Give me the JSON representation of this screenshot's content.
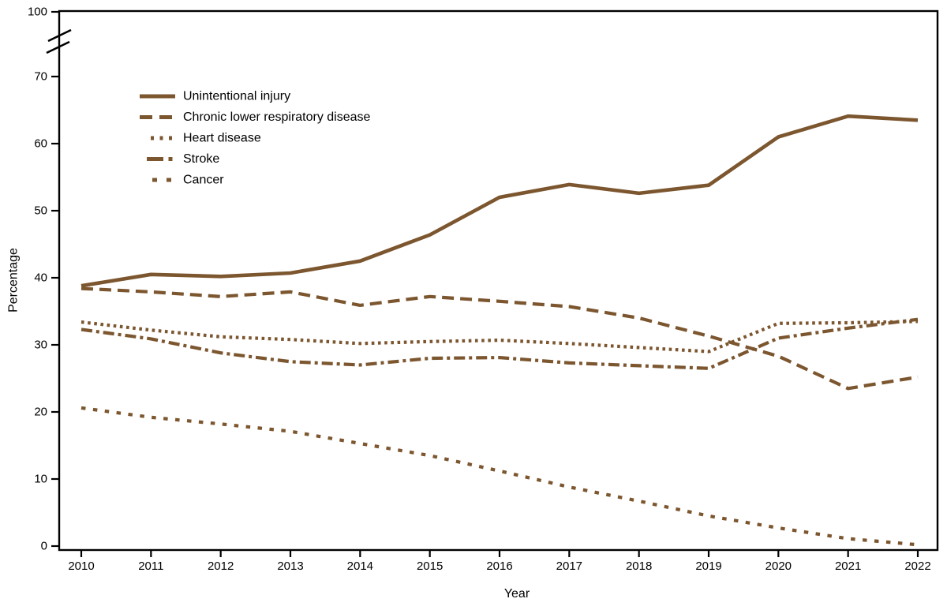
{
  "chart_data": {
    "type": "line",
    "title": "",
    "xlabel": "Year",
    "ylabel": "Percentage",
    "x": [
      2010,
      2011,
      2012,
      2013,
      2014,
      2015,
      2016,
      2017,
      2018,
      2019,
      2020,
      2021,
      2022
    ],
    "yticks": [
      0,
      10,
      20,
      30,
      40,
      50,
      60,
      70,
      100
    ],
    "ylim": [
      0,
      100
    ],
    "axis_break": {
      "present": true,
      "between": [
        70,
        100
      ]
    },
    "grid": "off",
    "legend_position": "top-left-inside",
    "line_color": "#7C562F",
    "axis_color": "#000000",
    "series": [
      {
        "name": "Unintentional injury",
        "style": "solid",
        "values": [
          38.8,
          40.5,
          40.2,
          40.7,
          42.5,
          46.4,
          52.0,
          53.9,
          52.6,
          53.8,
          61.0,
          64.1,
          63.5
        ]
      },
      {
        "name": "Chronic lower respiratory disease",
        "style": "long-dash",
        "values": [
          38.4,
          37.9,
          37.2,
          37.9,
          35.9,
          37.2,
          36.5,
          35.7,
          34.0,
          31.3,
          28.3,
          23.5,
          25.2
        ]
      },
      {
        "name": "Heart disease",
        "style": "dot",
        "values": [
          33.4,
          32.2,
          31.2,
          30.8,
          30.2,
          30.5,
          30.7,
          30.2,
          29.6,
          29.0,
          33.2,
          33.3,
          33.5
        ]
      },
      {
        "name": "Stroke",
        "style": "dash-dot",
        "values": [
          32.3,
          30.9,
          28.8,
          27.5,
          27.0,
          28.0,
          28.1,
          27.3,
          26.9,
          26.5,
          31.0,
          32.5,
          33.8
        ]
      },
      {
        "name": "Cancer",
        "style": "sparse-dash",
        "values": [
          20.6,
          19.2,
          18.2,
          17.1,
          15.3,
          13.5,
          11.2,
          8.8,
          6.7,
          4.5,
          2.7,
          1.1,
          0.2
        ]
      }
    ]
  }
}
